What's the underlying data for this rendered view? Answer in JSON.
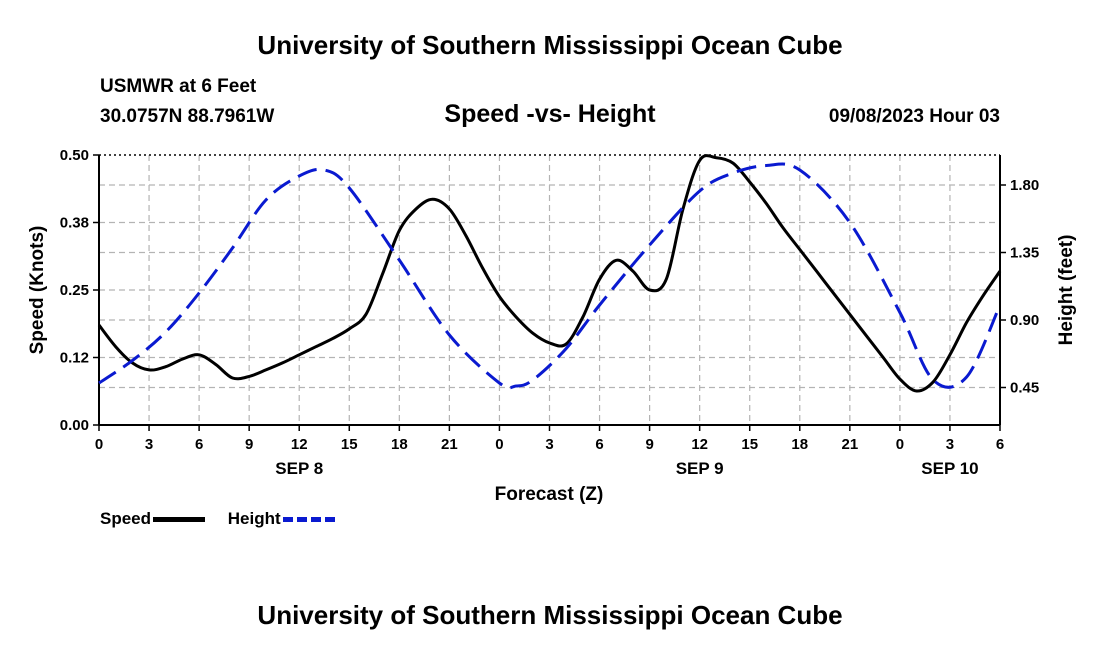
{
  "header": {
    "title": "University of Southern Mississippi Ocean Cube",
    "station": "USMWR at 6 Feet",
    "coords": "30.0757N  88.7961W",
    "chart_title": "Speed -vs- Height",
    "datetime": "09/08/2023 Hour 03"
  },
  "footer": {
    "title": "University of Southern Mississippi Ocean Cube"
  },
  "legend": {
    "speed": "Speed",
    "height": "Height"
  },
  "colors": {
    "speed": "#000000",
    "height": "#0a1ad0",
    "grid": "#b4b4b4"
  },
  "chart_data": {
    "type": "line",
    "title": "Speed -vs- Height",
    "xlabel": "Forecast (Z)",
    "ylabel_left": "Speed (Knots)",
    "ylabel_right": "Height (feet)",
    "x_hours": [
      0,
      54
    ],
    "x_tick_labels": [
      "0",
      "3",
      "6",
      "9",
      "12",
      "15",
      "18",
      "21",
      "0",
      "3",
      "6",
      "9",
      "12",
      "15",
      "18",
      "21",
      "0",
      "3",
      "6"
    ],
    "day_labels": [
      {
        "hour": 12,
        "label": "SEP 8"
      },
      {
        "hour": 36,
        "label": "SEP 9"
      },
      {
        "hour": 51,
        "label": "SEP 10"
      }
    ],
    "y_left": {
      "range": [
        0,
        0.5
      ],
      "ticks": [
        "0.00",
        "0.12",
        "0.25",
        "0.38",
        "0.50"
      ],
      "tick_values": [
        0,
        0.125,
        0.25,
        0.375,
        0.5
      ]
    },
    "y_right": {
      "range": [
        0.2,
        2.0
      ],
      "ticks": [
        "0.45",
        "0.90",
        "1.35",
        "1.80"
      ],
      "tick_values": [
        0.45,
        0.9,
        1.35,
        1.8
      ]
    },
    "series": [
      {
        "name": "Speed",
        "axis": "left",
        "style": "solid",
        "x": [
          0,
          1,
          2,
          3,
          4,
          5,
          6,
          7,
          8,
          9,
          10,
          11,
          12,
          13,
          14,
          15,
          16,
          17,
          18,
          19,
          20,
          21,
          22,
          23,
          24,
          25,
          26,
          27,
          28,
          29,
          30,
          31,
          32,
          33,
          34,
          35,
          36,
          37,
          38,
          39,
          40,
          41,
          42,
          43,
          44,
          45,
          46,
          47,
          48,
          49,
          50,
          51,
          52,
          53,
          54
        ],
        "values": [
          0.185,
          0.145,
          0.115,
          0.102,
          0.108,
          0.122,
          0.13,
          0.112,
          0.087,
          0.09,
          0.102,
          0.115,
          0.13,
          0.145,
          0.16,
          0.178,
          0.205,
          0.28,
          0.36,
          0.4,
          0.418,
          0.4,
          0.35,
          0.29,
          0.238,
          0.2,
          0.17,
          0.152,
          0.15,
          0.2,
          0.27,
          0.305,
          0.285,
          0.25,
          0.27,
          0.4,
          0.49,
          0.495,
          0.485,
          0.45,
          0.41,
          0.365,
          0.325,
          0.285,
          0.245,
          0.205,
          0.165,
          0.125,
          0.085,
          0.063,
          0.08,
          0.13,
          0.19,
          0.24,
          0.285
        ]
      },
      {
        "name": "Height",
        "axis": "right",
        "style": "dashed",
        "x": [
          0,
          2,
          4,
          6,
          8,
          10,
          12,
          13.5,
          15,
          18,
          21,
          24,
          25,
          26,
          28,
          30,
          33,
          36,
          38,
          40,
          42,
          45,
          48,
          50,
          52,
          54
        ],
        "values": [
          0.48,
          0.63,
          0.82,
          1.08,
          1.38,
          1.7,
          1.86,
          1.9,
          1.78,
          1.3,
          0.8,
          0.48,
          0.46,
          0.5,
          0.71,
          1.0,
          1.4,
          1.76,
          1.88,
          1.93,
          1.9,
          1.55,
          0.95,
          0.5,
          0.52,
          1.0
        ]
      }
    ]
  }
}
